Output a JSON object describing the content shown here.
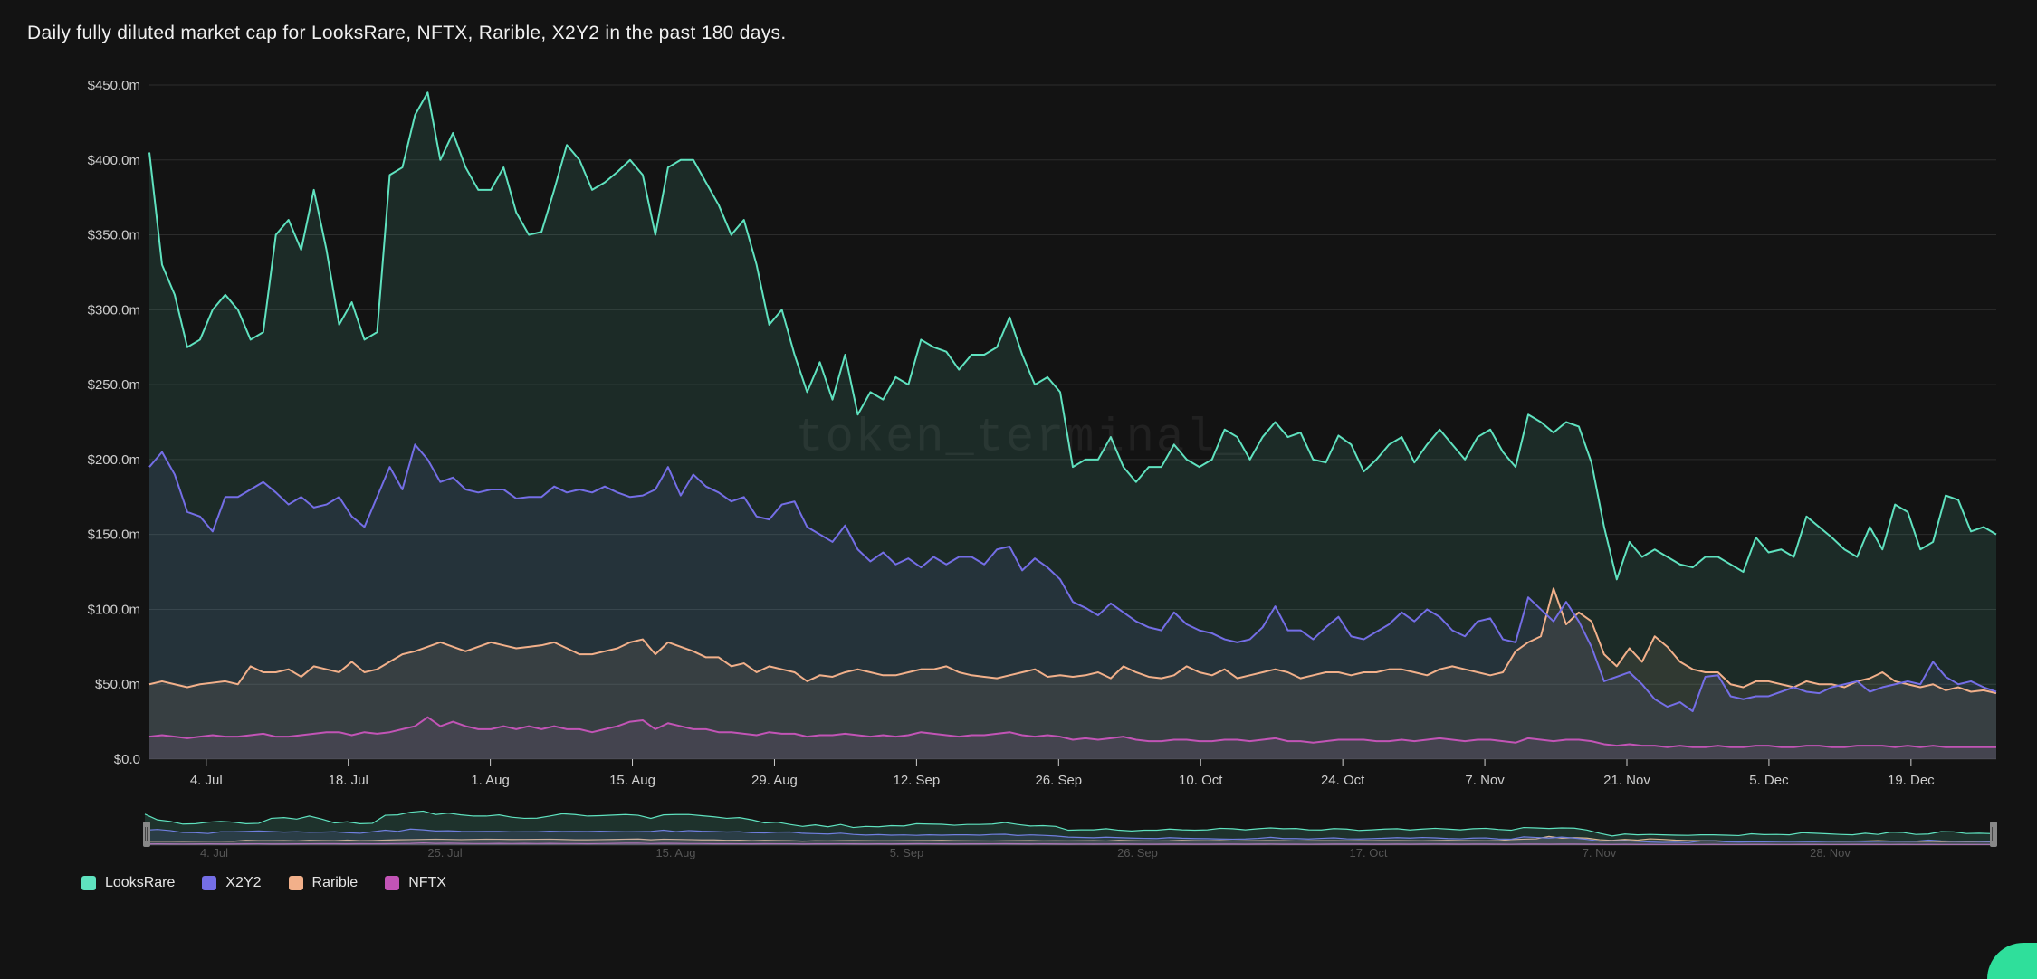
{
  "title": "Daily fully diluted market cap for LooksRare, NFTX, Rarible, X2Y2 in the past 180 days.",
  "watermark": "token_terminal_",
  "chart": {
    "type": "line",
    "background_color": "#131313",
    "grid_color": "#2c2c2c",
    "axis_text_color": "#cfcfcf",
    "ylim": [
      0,
      450
    ],
    "ytick_step": 50,
    "y_labels": [
      "$0.0",
      "$50.0m",
      "$100.0m",
      "$150.0m",
      "$200.0m",
      "$250.0m",
      "$300.0m",
      "$350.0m",
      "$400.0m",
      "$450.0m"
    ],
    "x_dates": [
      "4. Jul",
      "18. Jul",
      "1. Aug",
      "15. Aug",
      "29. Aug",
      "12. Sep",
      "26. Sep",
      "10. Oct",
      "24. Oct",
      "7. Nov",
      "21. Nov",
      "5. Dec",
      "19. Dec"
    ],
    "series": {
      "LooksRare": {
        "color": "#5fe2bf",
        "fill_opacity": 0.12,
        "values": [
          405,
          330,
          310,
          275,
          280,
          300,
          310,
          300,
          280,
          285,
          350,
          360,
          340,
          380,
          340,
          290,
          305,
          280,
          285,
          390,
          395,
          430,
          445,
          400,
          418,
          395,
          380,
          380,
          395,
          365,
          350,
          352,
          380,
          410,
          400,
          380,
          385,
          392,
          400,
          390,
          350,
          395,
          400,
          400,
          385,
          370,
          350,
          360,
          330,
          290,
          300,
          270,
          245,
          265,
          240,
          270,
          230,
          245,
          240,
          255,
          250,
          280,
          275,
          272,
          260,
          270,
          270,
          275,
          295,
          270,
          250,
          255,
          245,
          195,
          200,
          200,
          215,
          195,
          185,
          195,
          195,
          210,
          200,
          195,
          200,
          220,
          215,
          200,
          215,
          225,
          215,
          218,
          200,
          198,
          216,
          210,
          192,
          200,
          210,
          215,
          198,
          210,
          220,
          210,
          200,
          215,
          220,
          205,
          195,
          230,
          225,
          218,
          225,
          222,
          198,
          155,
          120,
          145,
          135,
          140,
          135,
          130,
          128,
          135,
          135,
          130,
          125,
          148,
          138,
          140,
          135,
          162,
          155,
          148,
          140,
          135,
          155,
          140,
          170,
          165,
          140,
          145,
          176,
          173,
          152,
          155,
          150
        ]
      },
      "X2Y2": {
        "color": "#746ee6",
        "fill_opacity": 0.1,
        "values": [
          195,
          205,
          190,
          165,
          162,
          152,
          175,
          175,
          180,
          185,
          178,
          170,
          175,
          168,
          170,
          175,
          162,
          155,
          175,
          195,
          180,
          210,
          200,
          185,
          188,
          180,
          178,
          180,
          180,
          174,
          175,
          175,
          182,
          178,
          180,
          178,
          182,
          178,
          175,
          176,
          180,
          195,
          176,
          190,
          182,
          178,
          172,
          175,
          162,
          160,
          170,
          172,
          155,
          150,
          145,
          156,
          140,
          132,
          138,
          130,
          134,
          128,
          135,
          130,
          135,
          135,
          130,
          140,
          142,
          126,
          134,
          128,
          120,
          105,
          101,
          96,
          104,
          98,
          92,
          88,
          86,
          98,
          90,
          86,
          84,
          80,
          78,
          80,
          88,
          102,
          86,
          86,
          80,
          88,
          95,
          82,
          80,
          85,
          90,
          98,
          92,
          100,
          95,
          86,
          82,
          92,
          94,
          80,
          78,
          108,
          100,
          92,
          105,
          92,
          75,
          52,
          55,
          58,
          50,
          40,
          35,
          38,
          32,
          55,
          56,
          42,
          40,
          42,
          42,
          45,
          48,
          45,
          44,
          48,
          50,
          52,
          45,
          48,
          50,
          52,
          50,
          65,
          55,
          50,
          52,
          48,
          45
        ]
      },
      "Rarible": {
        "color": "#f2b08a",
        "fill_opacity": 0.1,
        "values": [
          50,
          52,
          50,
          48,
          50,
          51,
          52,
          50,
          62,
          58,
          58,
          60,
          55,
          62,
          60,
          58,
          65,
          58,
          60,
          65,
          70,
          72,
          75,
          78,
          75,
          72,
          75,
          78,
          76,
          74,
          75,
          76,
          78,
          74,
          70,
          70,
          72,
          74,
          78,
          80,
          70,
          78,
          75,
          72,
          68,
          68,
          62,
          64,
          58,
          62,
          60,
          58,
          52,
          56,
          55,
          58,
          60,
          58,
          56,
          56,
          58,
          60,
          60,
          62,
          58,
          56,
          55,
          54,
          56,
          58,
          60,
          55,
          56,
          55,
          56,
          58,
          54,
          62,
          58,
          55,
          54,
          56,
          62,
          58,
          56,
          60,
          54,
          56,
          58,
          60,
          58,
          54,
          56,
          58,
          58,
          56,
          58,
          58,
          60,
          60,
          58,
          56,
          60,
          62,
          60,
          58,
          56,
          58,
          72,
          78,
          82,
          114,
          90,
          98,
          92,
          70,
          62,
          74,
          65,
          82,
          75,
          65,
          60,
          58,
          58,
          50,
          48,
          52,
          52,
          50,
          48,
          52,
          50,
          50,
          48,
          52,
          54,
          58,
          52,
          50,
          48,
          50,
          46,
          48,
          45,
          46,
          44
        ]
      },
      "NFTX": {
        "color": "#c254b6",
        "fill_opacity": 0.1,
        "values": [
          15,
          16,
          15,
          14,
          15,
          16,
          15,
          15,
          16,
          17,
          15,
          15,
          16,
          17,
          18,
          18,
          16,
          18,
          17,
          18,
          20,
          22,
          28,
          22,
          25,
          22,
          20,
          20,
          22,
          20,
          22,
          20,
          22,
          20,
          20,
          18,
          20,
          22,
          25,
          26,
          20,
          24,
          22,
          20,
          20,
          18,
          18,
          17,
          16,
          18,
          17,
          17,
          15,
          16,
          16,
          17,
          16,
          15,
          16,
          15,
          16,
          18,
          17,
          16,
          15,
          16,
          16,
          17,
          18,
          16,
          15,
          16,
          15,
          13,
          14,
          13,
          14,
          15,
          13,
          12,
          12,
          13,
          13,
          12,
          12,
          13,
          13,
          12,
          13,
          14,
          12,
          12,
          11,
          12,
          13,
          13,
          13,
          12,
          12,
          13,
          12,
          13,
          14,
          13,
          12,
          13,
          13,
          12,
          11,
          14,
          13,
          12,
          13,
          13,
          12,
          10,
          9,
          10,
          9,
          9,
          8,
          9,
          8,
          8,
          9,
          8,
          8,
          9,
          9,
          8,
          8,
          9,
          9,
          8,
          8,
          9,
          9,
          9,
          8,
          9,
          8,
          9,
          8,
          8,
          8,
          8,
          8
        ]
      }
    }
  },
  "brush": {
    "x_dates": [
      "4. Jul",
      "25. Jul",
      "15. Aug",
      "5. Sep",
      "26. Sep",
      "17. Oct",
      "7. Nov",
      "28. Nov"
    ]
  },
  "legend": [
    {
      "label": "LooksRare",
      "color": "#5fe2bf"
    },
    {
      "label": "X2Y2",
      "color": "#746ee6"
    },
    {
      "label": "Rarible",
      "color": "#f2b08a"
    },
    {
      "label": "NFTX",
      "color": "#c254b6"
    }
  ]
}
